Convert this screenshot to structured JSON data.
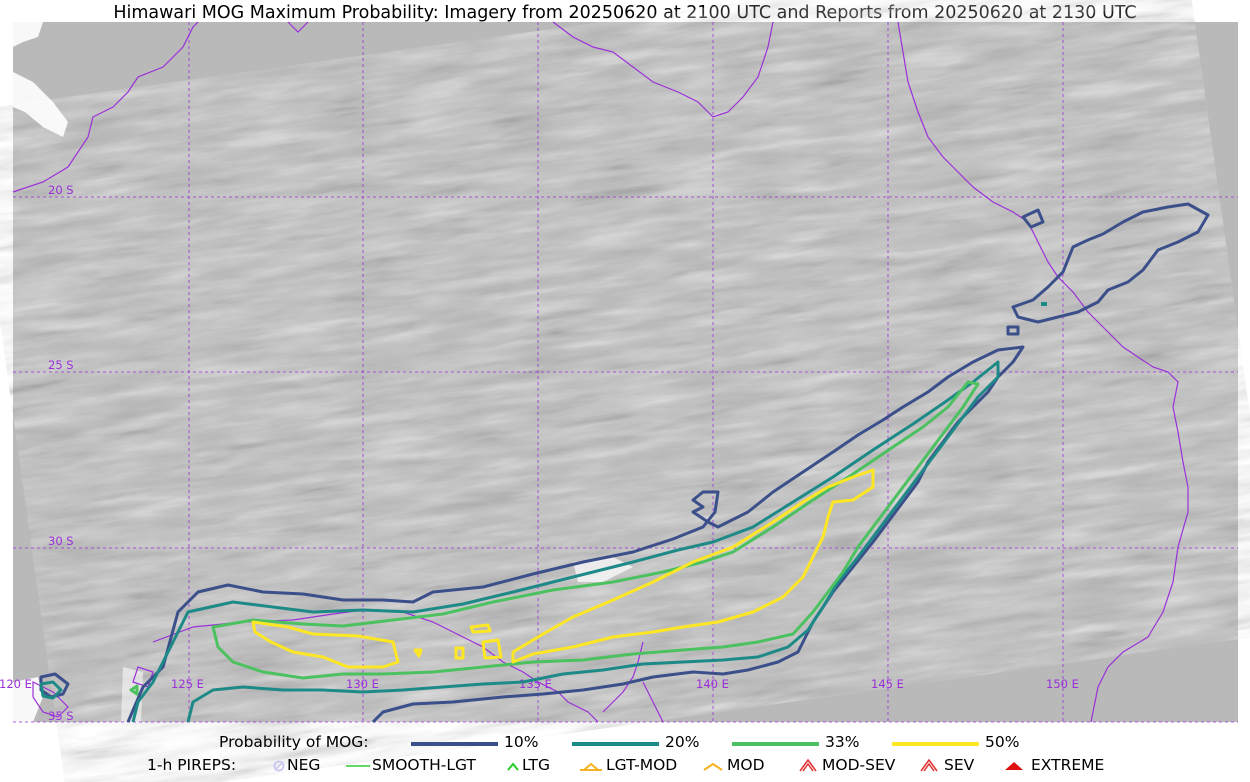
{
  "title": "Himawari MOG Maximum Probability: Imagery from 20250620 at 2100 UTC and Reports from 20250620 at 2130 UTC",
  "map": {
    "latitude_labels": [
      "20 S",
      "25 S",
      "30 S",
      "35 S"
    ],
    "longitude_labels": [
      "120 E",
      "125 E",
      "130 E",
      "135 E",
      "140 E",
      "145 E",
      "150 E"
    ],
    "gridline_color": "#9b30d9",
    "coastline_color": "#9b30d9",
    "background": "grayscale satellite water-vapor imagery"
  },
  "legend": {
    "probability": {
      "title": "Probability of MOG:",
      "items": [
        {
          "label": "10%",
          "color": "#3b4f8a"
        },
        {
          "label": "20%",
          "color": "#1e8a87"
        },
        {
          "label": "33%",
          "color": "#4cc160"
        },
        {
          "label": "50%",
          "color": "#fde725"
        }
      ]
    },
    "pireps": {
      "title": "1-h PIREPS:",
      "items": [
        {
          "label": "NEG",
          "icon": "neg-circle-icon",
          "color": "#c8c8f0"
        },
        {
          "label": "SMOOTH-LGT",
          "icon": "line-icon",
          "color": "#33cc33"
        },
        {
          "label": "LTG",
          "icon": "caret-icon",
          "color": "#22cc22"
        },
        {
          "label": "LGT-MOD",
          "icon": "caret-bar-icon",
          "color": "#f5b324"
        },
        {
          "label": "MOD",
          "icon": "caret-icon",
          "color": "#f5b324"
        },
        {
          "label": "MOD-SEV",
          "icon": "double-caret-icon",
          "color": "#e03030"
        },
        {
          "label": "SEV",
          "icon": "double-caret-icon",
          "color": "#e03030"
        },
        {
          "label": "EXTREME",
          "icon": "filled-caret-icon",
          "color": "#e01010"
        }
      ]
    }
  }
}
